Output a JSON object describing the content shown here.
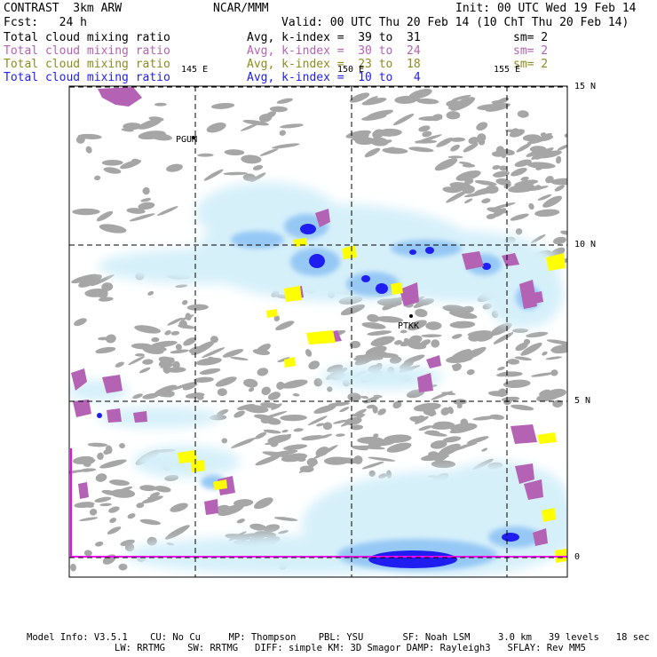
{
  "header": {
    "model": "CONTRAST  3km ARW",
    "center": "NCAR/MMM",
    "init": "Init: 00 UTC Wed 19 Feb 14",
    "fcst": "Fcst:   24 h",
    "valid": "Valid: 00 UTC Thu 20 Feb 14 (10 ChT Thu 20 Feb 14)"
  },
  "fields": [
    {
      "label": "Total cloud mixing ratio",
      "avg": "Avg, k-index =  39 to  31",
      "sm": "sm= 2",
      "color": "#000000"
    },
    {
      "label": "Total cloud mixing ratio",
      "avg": "Avg, k-index =  30 to  24",
      "sm": "sm= 2",
      "color": "#b462b4"
    },
    {
      "label": "Total cloud mixing ratio",
      "avg": "Avg, k-index =  23 to  18",
      "sm": "sm= 2",
      "color": "#8c8c1e"
    },
    {
      "label": "Total cloud mixing ratio",
      "avg": "Avg, k-index =  10 to   4",
      "sm": "",
      "color": "#1e1ef0"
    }
  ],
  "map": {
    "lon_labels": [
      "145 E",
      "150 E",
      "155 E"
    ],
    "lat_labels": [
      "15 N",
      "10 N",
      "5 N",
      "0"
    ],
    "stations": [
      "PGUM",
      "PTKK"
    ],
    "colors": {
      "gray_layer": "#a6a6a6",
      "purple_layer": "#b462b4",
      "yellow_layer": "#ffff00",
      "blue_light": "#d6f0fa",
      "blue_mid": "#96c8f5",
      "blue_dark": "#1e1ef0",
      "boundary": "#ff00ff"
    }
  },
  "footer": {
    "line1": "Model Info: V3.5.1    CU: No Cu     MP: Thompson    PBL: YSU       SF: Noah LSM     3.0 km   39 levels   18 sec",
    "line2": "LW: RRTMG    SW: RRTMG   DIFF: simple KM: 3D Smagor DAMP: Rayleigh3   SFLAY: Rev MM5"
  }
}
